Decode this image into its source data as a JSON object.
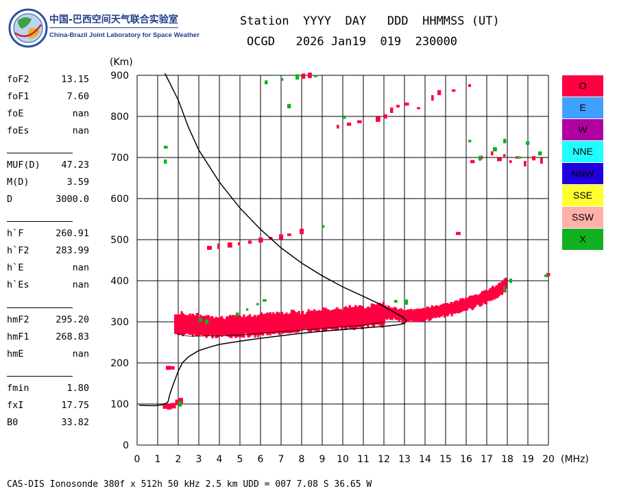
{
  "header": {
    "logo_cn": "中国-巴西空间天气联合实验室",
    "logo_en": "China-Brazil Joint Laboratory for Space Weather",
    "line1": "Station  YYYY  DAY   DDD  HHMMSS (UT)",
    "line2": "OCGD   2026 Jan19  019  230000"
  },
  "params": [
    [
      {
        "label": "foF2",
        "value": "13.15"
      },
      {
        "label": "foF1",
        "value": "7.60"
      },
      {
        "label": "foE",
        "value": "nan"
      },
      {
        "label": "foEs",
        "value": "nan"
      }
    ],
    [
      {
        "label": "MUF(D)",
        "value": "47.23"
      },
      {
        "label": "M(D)",
        "value": "3.59"
      },
      {
        "label": "D",
        "value": "3000.0"
      }
    ],
    [
      {
        "label": "h`F",
        "value": "260.91"
      },
      {
        "label": "h`F2",
        "value": "283.99"
      },
      {
        "label": "h`E",
        "value": "nan"
      },
      {
        "label": "h`Es",
        "value": "nan"
      }
    ],
    [
      {
        "label": "hmF2",
        "value": "295.20"
      },
      {
        "label": "hmF1",
        "value": "268.83"
      },
      {
        "label": "hmE",
        "value": "nan"
      }
    ],
    [
      {
        "label": "fmin",
        "value": "1.80"
      },
      {
        "label": "fxI",
        "value": "17.75"
      },
      {
        "label": "B0",
        "value": "33.82"
      }
    ]
  ],
  "legend": [
    {
      "label": "O",
      "color": "#ff0040"
    },
    {
      "label": "E",
      "color": "#40a0ff"
    },
    {
      "label": "W",
      "color": "#b000a0"
    },
    {
      "label": "NNE",
      "color": "#20ffff"
    },
    {
      "label": "NNW",
      "color": "#2000e0"
    },
    {
      "label": "SSE",
      "color": "#ffff30"
    },
    {
      "label": "SSW",
      "color": "#ffb0a8"
    },
    {
      "label": "X",
      "color": "#10b020"
    }
  ],
  "footer": "CAS-DIS Ionosonde 380f x 512h 50 kHz 2.5 km UDD = 007 7.08 S 36.65 W",
  "chart_data": {
    "type": "scatter",
    "xlabel": "(MHz)",
    "ylabel": "(Km)",
    "xlim": [
      0,
      20
    ],
    "ylim": [
      0,
      900
    ],
    "x_ticks": [
      0,
      1,
      2,
      3,
      4,
      5,
      6,
      7,
      8,
      9,
      10,
      11,
      12,
      13,
      14,
      15,
      16,
      17,
      18,
      19,
      20
    ],
    "y_ticks": [
      0,
      100,
      200,
      300,
      400,
      500,
      600,
      700,
      800,
      900
    ],
    "grid": true,
    "o_trace_color": "#ff0040",
    "x_trace_color": "#10b020",
    "o_trace_band": [
      [
        1.8,
        292
      ],
      [
        2.2,
        292
      ],
      [
        2.6,
        290
      ],
      [
        3.0,
        288
      ],
      [
        3.5,
        286
      ],
      [
        4.0,
        285
      ],
      [
        4.5,
        285
      ],
      [
        5.0,
        286
      ],
      [
        5.5,
        288
      ],
      [
        6.0,
        290
      ],
      [
        6.5,
        292
      ],
      [
        7.0,
        294
      ],
      [
        7.5,
        296
      ],
      [
        8.0,
        298
      ],
      [
        8.5,
        300
      ],
      [
        9.0,
        302
      ],
      [
        9.5,
        304
      ],
      [
        10.0,
        306
      ],
      [
        10.5,
        308
      ],
      [
        11.0,
        310
      ],
      [
        11.5,
        313
      ],
      [
        12.0,
        315
      ]
    ],
    "o_trace_upper_band": [
      [
        12.0,
        320
      ],
      [
        12.5,
        318
      ],
      [
        13.0,
        310
      ],
      [
        13.5,
        312
      ],
      [
        14.0,
        316
      ],
      [
        14.5,
        322
      ],
      [
        15.0,
        327
      ],
      [
        15.5,
        333
      ],
      [
        16.0,
        340
      ],
      [
        16.5,
        350
      ],
      [
        17.0,
        360
      ],
      [
        17.5,
        372
      ],
      [
        17.9,
        390
      ]
    ],
    "low_echo": [
      [
        1.35,
        95
      ],
      [
        1.55,
        93
      ],
      [
        1.75,
        96
      ],
      [
        1.95,
        104
      ],
      [
        2.1,
        108
      ]
    ],
    "second_hop_points": [
      [
        3.4,
        480
      ],
      [
        3.9,
        484
      ],
      [
        4.4,
        487
      ],
      [
        4.9,
        490
      ],
      [
        5.4,
        494
      ],
      [
        5.9,
        499
      ],
      [
        6.4,
        503
      ],
      [
        6.9,
        507
      ],
      [
        7.3,
        512
      ],
      [
        7.9,
        520
      ],
      [
        9.7,
        775
      ],
      [
        10.2,
        781
      ],
      [
        10.7,
        787
      ],
      [
        11.6,
        793
      ],
      [
        12.0,
        800
      ],
      [
        12.3,
        815
      ],
      [
        12.6,
        825
      ],
      [
        13.0,
        830
      ],
      [
        13.6,
        820
      ],
      [
        14.3,
        845
      ],
      [
        14.6,
        858
      ],
      [
        15.3,
        863
      ],
      [
        16.1,
        875
      ],
      [
        16.2,
        690
      ],
      [
        16.7,
        700
      ],
      [
        17.2,
        710
      ],
      [
        17.5,
        695
      ],
      [
        17.8,
        705
      ],
      [
        18.1,
        690
      ],
      [
        18.4,
        700
      ],
      [
        18.8,
        685
      ],
      [
        19.2,
        698
      ],
      [
        19.6,
        692
      ],
      [
        8.0,
        898
      ],
      [
        8.3,
        900
      ],
      [
        15.5,
        515
      ],
      [
        19.9,
        415
      ],
      [
        1.4,
        188
      ],
      [
        1.6,
        188
      ]
    ],
    "x_mode_points": [
      [
        3.0,
        305
      ],
      [
        3.3,
        300
      ],
      [
        4.8,
        318
      ],
      [
        5.3,
        330
      ],
      [
        5.8,
        343
      ],
      [
        6.1,
        352
      ],
      [
        9.0,
        532
      ],
      [
        7.3,
        825
      ],
      [
        6.2,
        883
      ],
      [
        7.0,
        890
      ],
      [
        7.7,
        896
      ],
      [
        8.6,
        898
      ],
      [
        10.0,
        798
      ],
      [
        12.5,
        350
      ],
      [
        13.0,
        348
      ],
      [
        16.1,
        740
      ],
      [
        16.6,
        698
      ],
      [
        17.3,
        720
      ],
      [
        17.8,
        740
      ],
      [
        18.5,
        700
      ],
      [
        18.9,
        735
      ],
      [
        19.5,
        710
      ],
      [
        1.3,
        725
      ],
      [
        1.3,
        690
      ],
      [
        2.0,
        100
      ],
      [
        17.8,
        380
      ],
      [
        18.1,
        400
      ],
      [
        19.8,
        412
      ]
    ],
    "profile_curve": [
      [
        1.2,
        98
      ],
      [
        1.35,
        100
      ],
      [
        1.5,
        105
      ],
      [
        1.6,
        125
      ],
      [
        1.7,
        140
      ],
      [
        1.85,
        160
      ],
      [
        2.0,
        180
      ],
      [
        2.2,
        200
      ],
      [
        2.5,
        215
      ],
      [
        3.0,
        230
      ],
      [
        3.5,
        238
      ],
      [
        4.0,
        245
      ],
      [
        5.0,
        253
      ],
      [
        6.0,
        260
      ],
      [
        7.0,
        266
      ],
      [
        8.0,
        272
      ],
      [
        9.0,
        277
      ],
      [
        10.0,
        281
      ],
      [
        11.0,
        285
      ],
      [
        12.0,
        289
      ],
      [
        12.6,
        292
      ],
      [
        13.0,
        296
      ],
      [
        13.1,
        303
      ],
      [
        12.9,
        312
      ],
      [
        12.4,
        326
      ],
      [
        11.8,
        343
      ],
      [
        11.0,
        362
      ],
      [
        10.0,
        385
      ],
      [
        9.0,
        412
      ],
      [
        8.0,
        443
      ],
      [
        7.0,
        480
      ],
      [
        6.0,
        525
      ],
      [
        5.0,
        577
      ],
      [
        4.0,
        640
      ],
      [
        3.0,
        718
      ],
      [
        2.5,
        773
      ],
      [
        2.0,
        840
      ],
      [
        1.35,
        905
      ]
    ],
    "profile_start_curve": [
      [
        0.1,
        97
      ],
      [
        0.5,
        96
      ],
      [
        0.9,
        96
      ],
      [
        1.2,
        98
      ]
    ],
    "trace_midline": [
      [
        1.8,
        272
      ],
      [
        2.5,
        265
      ],
      [
        3.0,
        265
      ],
      [
        4.0,
        266
      ],
      [
        5.0,
        268
      ],
      [
        6.0,
        272
      ],
      [
        7.0,
        276
      ],
      [
        8.0,
        280
      ],
      [
        9.0,
        284
      ],
      [
        10.0,
        288
      ],
      [
        11.0,
        292
      ],
      [
        12.0,
        300
      ]
    ]
  }
}
